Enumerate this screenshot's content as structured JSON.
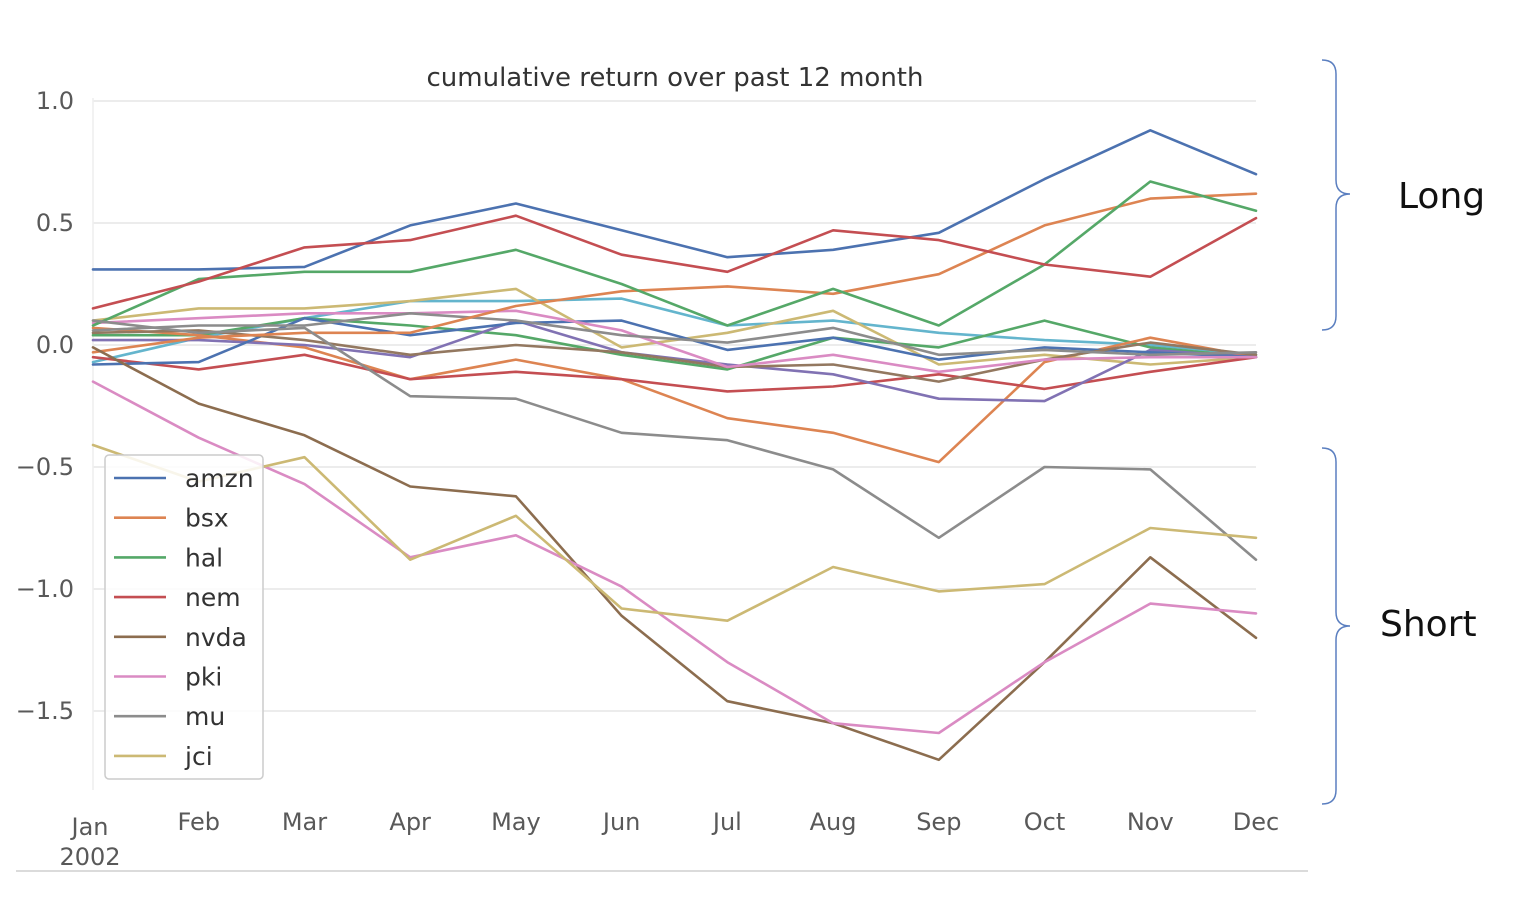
{
  "chart_data": {
    "type": "line",
    "title": "cumulative return over past 12 month",
    "xlabel": "",
    "ylabel": "",
    "x": [
      "Jan\n2002",
      "Feb",
      "Mar",
      "Apr",
      "May",
      "Jun",
      "Jul",
      "Aug",
      "Sep",
      "Oct",
      "Nov",
      "Dec"
    ],
    "x_tick_labels": [
      "Jan",
      "Feb",
      "Mar",
      "Apr",
      "May",
      "Jun",
      "Jul",
      "Aug",
      "Sep",
      "Oct",
      "Nov",
      "Dec"
    ],
    "x_year_label": "2002",
    "y_ticks": [
      1.0,
      0.5,
      0.0,
      -0.5,
      -1.0,
      -1.5
    ],
    "y_tick_labels": [
      "1.0",
      "0.5",
      "0.0",
      "−0.5",
      "−1.0",
      "−1.5"
    ],
    "ylim": [
      -1.83,
      1.05
    ],
    "grid": true,
    "legend_position": "lower-left",
    "series": [
      {
        "name": "amzn",
        "color": "#4c72b0",
        "values": [
          0.31,
          0.31,
          0.32,
          0.49,
          0.58,
          0.47,
          0.36,
          0.39,
          0.46,
          0.68,
          0.88,
          0.7
        ]
      },
      {
        "name": "bsx",
        "color": "#dd8452",
        "values": [
          -0.03,
          0.03,
          0.05,
          0.05,
          0.16,
          0.22,
          0.24,
          0.21,
          0.29,
          0.49,
          0.6,
          0.62
        ]
      },
      {
        "name": "hal",
        "color": "#55a868",
        "values": [
          0.08,
          0.27,
          0.3,
          0.3,
          0.39,
          0.25,
          0.08,
          0.23,
          0.08,
          0.33,
          0.67,
          0.55
        ]
      },
      {
        "name": "nem",
        "color": "#c44e52",
        "values": [
          0.15,
          0.26,
          0.4,
          0.43,
          0.53,
          0.37,
          0.3,
          0.47,
          0.43,
          0.33,
          0.28,
          0.52
        ]
      },
      {
        "name": "nvda",
        "color": "#8c6d4f",
        "values": [
          -0.01,
          -0.24,
          -0.37,
          -0.58,
          -0.62,
          -1.11,
          -1.46,
          -1.55,
          -1.7,
          -1.3,
          -0.87,
          -1.2
        ]
      },
      {
        "name": "pki",
        "color": "#da8bc3",
        "values": [
          -0.15,
          -0.38,
          -0.57,
          -0.87,
          -0.78,
          -0.99,
          -1.3,
          -1.55,
          -1.59,
          -1.3,
          -1.06,
          -1.1
        ]
      },
      {
        "name": "mu",
        "color": "#8c8c8c",
        "values": [
          0.1,
          0.05,
          0.07,
          -0.21,
          -0.22,
          -0.36,
          -0.39,
          -0.51,
          -0.79,
          -0.5,
          -0.51,
          -0.88
        ]
      },
      {
        "name": "jci",
        "color": "#ccb974",
        "values": [
          -0.41,
          -0.56,
          -0.46,
          -0.88,
          -0.7,
          -1.08,
          -1.13,
          -0.91,
          -1.01,
          -0.98,
          -0.75,
          -0.79
        ]
      },
      {
        "color": "#64b5cd",
        "values": [
          -0.07,
          0.03,
          0.11,
          0.18,
          0.18,
          0.19,
          0.08,
          0.1,
          0.05,
          0.02,
          0.0,
          -0.04
        ]
      },
      {
        "color": "#ccb974",
        "values": [
          0.1,
          0.15,
          0.15,
          0.18,
          0.23,
          -0.01,
          0.05,
          0.14,
          -0.08,
          -0.04,
          -0.08,
          -0.05
        ]
      },
      {
        "color": "#55a868",
        "values": [
          0.04,
          0.04,
          0.11,
          0.08,
          0.04,
          -0.04,
          -0.1,
          0.03,
          -0.01,
          0.1,
          -0.01,
          -0.05
        ]
      },
      {
        "color": "#dd8452",
        "values": [
          0.07,
          0.04,
          -0.01,
          -0.14,
          -0.06,
          -0.14,
          -0.3,
          -0.36,
          -0.48,
          -0.07,
          0.03,
          -0.05
        ]
      },
      {
        "color": "#c44e52",
        "values": [
          -0.05,
          -0.1,
          -0.04,
          -0.14,
          -0.11,
          -0.14,
          -0.19,
          -0.17,
          -0.12,
          -0.18,
          -0.11,
          -0.05
        ]
      },
      {
        "color": "#8172b3",
        "values": [
          0.02,
          0.02,
          0.0,
          -0.05,
          0.1,
          -0.03,
          -0.08,
          -0.12,
          -0.22,
          -0.23,
          -0.02,
          -0.05
        ]
      },
      {
        "color": "#4c72b0",
        "values": [
          -0.08,
          -0.07,
          0.11,
          0.04,
          0.09,
          0.1,
          -0.02,
          0.03,
          -0.06,
          -0.01,
          -0.03,
          -0.05
        ]
      },
      {
        "color": "#937860",
        "values": [
          0.05,
          0.06,
          0.02,
          -0.04,
          0.0,
          -0.03,
          -0.09,
          -0.08,
          -0.15,
          -0.06,
          0.01,
          -0.04
        ]
      },
      {
        "color": "#da8bc3",
        "values": [
          0.09,
          0.11,
          0.13,
          0.13,
          0.14,
          0.06,
          -0.09,
          -0.04,
          -0.11,
          -0.06,
          -0.05,
          -0.05
        ]
      },
      {
        "color": "#8c8c8c",
        "values": [
          0.06,
          0.08,
          0.08,
          0.13,
          0.1,
          0.04,
          0.01,
          0.07,
          -0.04,
          -0.02,
          -0.04,
          -0.03
        ]
      }
    ]
  },
  "annotations": {
    "long_label": "Long",
    "short_label": "Short",
    "bracket_color": "#5b7fc0"
  }
}
